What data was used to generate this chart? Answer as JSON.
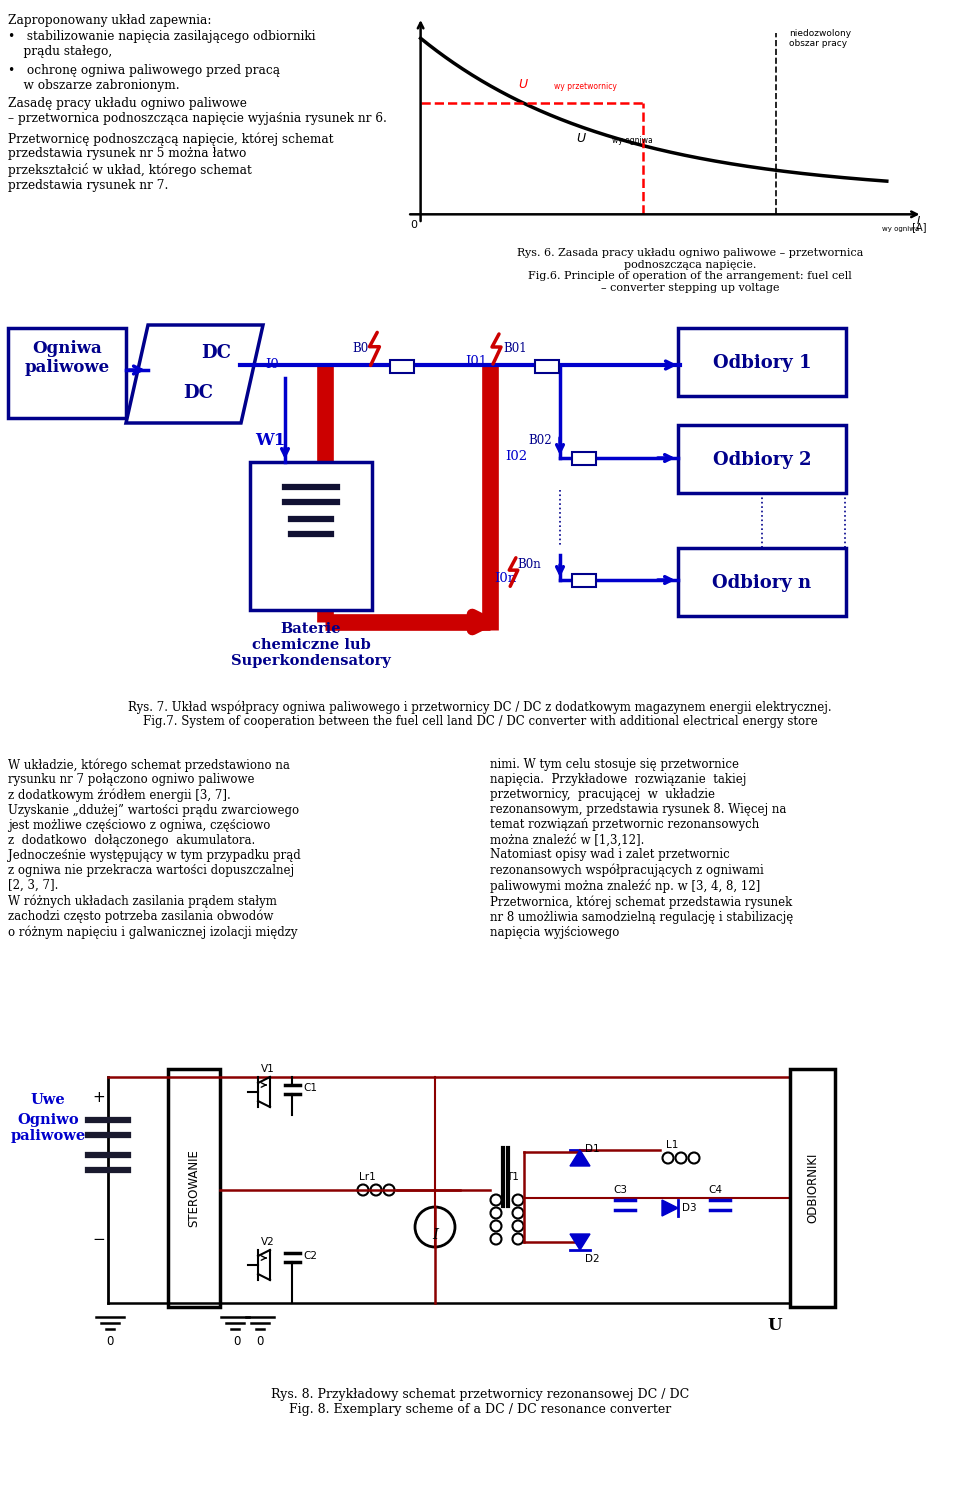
{
  "background": "#ffffff",
  "para1": "Zaproponowany układ zapewnia:",
  "bullet1": "•   stabilizowanie napięcia zasilającego odbiorniki\n    prądu stałego,",
  "bullet2": "•   ochronę ogniwa paliwowego przed pracą\n    w obszarze zabronionym.",
  "para2": "Zasadę pracy układu ogniwo paliwowe\n– przetwornica podnoszcząca napięcie wyjaśnia rysunek nr 6.",
  "para3": "Przetwornicę podnoszczącą napięcie, której schemat\nprzedstawia rysunek nr 5 można łatwo\nprzekształcić w układ, którego schemat\nprzedstawia rysunek nr 7.",
  "fig6_caption": "Rys. 6. Zasada pracy układu ogniwo paliwowe – przetwornica\npodnoszcząca napięcie.\nFig.6. Principle of operation of the arrangement: fuel cell\n– converter stepping up voltage",
  "fig7_caption": "Rys. 7. Układ współpracy ogniwa paliwowego i przetwornicy DC / DC z dodatkowym magazynem energii elektrycznej.\nFig.7. System of cooperation between the fuel cell land DC / DC converter with additional electrical energy store",
  "para4_left": "W układzie, którego schemat przedstawiono na\nrysunku nr 7 połączono ogniwo paliwowe\nz dodatkowym źródłem energii [3, 7].\nUzyskanie „ddużej” wartości prądu zwarciowego\njest możliwe częściowo z ogniwa, częściowo\nz  dodatkowo  dołączonego  akumulatora.\nJednocześnie występujący w tym przypadku prąd\nz ogniwa nie przekracza wartości dopuszczalnej\n[2, 3, 7].\nW różnych układach zasilania prądem stałym\nzachodzi często potrzeba zasilania obwodów\no różnym napięciu i galwanicznej izolacji między",
  "para4_right": "nimi. W tym celu stosuje się przetwornice\nnapięcia.  Przykładowe  rozwiązanie  takiej\nprzetwornicy,  pracującej  w  układzie\nrezonansowym, przedstawia rysunek 8. Więcej na\ntemat rozwiązań przetwornic rezonansowych\nmożna znaleźć w [1,3,12].\nNatomiast opisy wad i zalet przetwornic\nrezonansowych współpracujących z ogniwami\npaliwowymi można znaleźć np. w [3, 4, 8, 12]\nPrzetwornica, której schemat przedstawia rysunek\nnr 8 umożliwia samodzielną regulację i stabilizację\nnapięcia wyjściowego",
  "fig8_caption": "Rys. 8. Przykładowy schemat przetwornicy rezonansowej DC / DC\nFig. 8. Exemplary scheme of a DC / DC resonance converter",
  "navy": "#00008B",
  "red": "#CC0000",
  "blue": "#0000CC"
}
